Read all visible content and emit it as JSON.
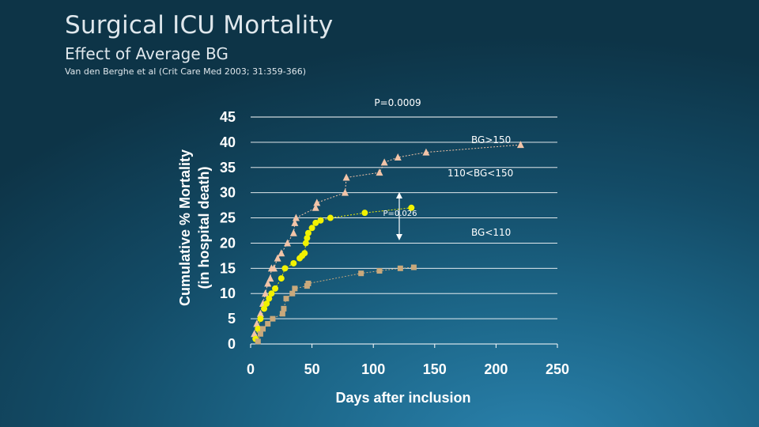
{
  "title": "Surgical ICU Mortality",
  "subtitle": "Effect of Average BG",
  "citation": "Van den Berghe et al (Crit Care Med 2003; 31:359-366)",
  "chart_data": {
    "type": "scatter",
    "title": "Surgical ICU Mortality",
    "xlabel": "Days after inclusion",
    "ylabel_line1": "Cumulative % Mortality",
    "ylabel_line2": "(in hospital death)",
    "xlim": [
      0,
      250
    ],
    "ylim": [
      0,
      45
    ],
    "xticks": [
      0,
      50,
      100,
      150,
      200,
      250
    ],
    "yticks": [
      0,
      5,
      10,
      15,
      20,
      25,
      30,
      35,
      40,
      45
    ],
    "grid": "horizontal",
    "series": [
      {
        "name": "BG>150",
        "marker": "triangle",
        "color": "#f2c4a8",
        "points": [
          [
            3,
            2
          ],
          [
            5,
            4
          ],
          [
            8,
            6
          ],
          [
            10,
            8
          ],
          [
            12,
            10
          ],
          [
            14,
            12
          ],
          [
            16,
            13
          ],
          [
            17,
            15
          ],
          [
            19,
            15
          ],
          [
            22,
            17
          ],
          [
            25,
            18
          ],
          [
            30,
            20
          ],
          [
            35,
            22
          ],
          [
            36,
            24
          ],
          [
            37,
            25
          ],
          [
            53,
            27
          ],
          [
            54,
            28
          ],
          [
            77,
            30
          ],
          [
            78,
            33
          ],
          [
            105,
            34
          ],
          [
            109,
            36
          ],
          [
            120,
            37
          ],
          [
            143,
            38
          ],
          [
            220,
            39.5
          ]
        ]
      },
      {
        "name": "110<BG<150",
        "marker": "circle",
        "color": "#f2f200",
        "points": [
          [
            4,
            1
          ],
          [
            6,
            3
          ],
          [
            8,
            5
          ],
          [
            11,
            7
          ],
          [
            13,
            8
          ],
          [
            15,
            9
          ],
          [
            17,
            10
          ],
          [
            20,
            11
          ],
          [
            25,
            13
          ],
          [
            28,
            15
          ],
          [
            35,
            16
          ],
          [
            40,
            17
          ],
          [
            42,
            17.5
          ],
          [
            44,
            18
          ],
          [
            45,
            20
          ],
          [
            46,
            21
          ],
          [
            47,
            22
          ],
          [
            50,
            23
          ],
          [
            53,
            24
          ],
          [
            57,
            24.5
          ],
          [
            65,
            25
          ],
          [
            93,
            26
          ],
          [
            131,
            27
          ]
        ]
      },
      {
        "name": "BG<110",
        "marker": "square",
        "color": "#c9a97c",
        "points": [
          [
            6,
            0.5
          ],
          [
            8,
            2
          ],
          [
            10,
            3
          ],
          [
            14,
            4
          ],
          [
            18,
            5
          ],
          [
            26,
            6
          ],
          [
            27,
            7
          ],
          [
            29,
            9
          ],
          [
            34,
            10
          ],
          [
            36,
            11
          ],
          [
            46,
            11.5
          ],
          [
            47,
            12
          ],
          [
            90,
            14
          ],
          [
            105,
            14.5
          ],
          [
            122,
            15
          ],
          [
            133,
            15.2
          ]
        ]
      }
    ],
    "annotations": {
      "p_overall": "P=0.0009",
      "p_pair": "P=0.026",
      "label_high": "BG>150",
      "label_mid": "110<BG<150",
      "label_low": "BG<110"
    }
  }
}
